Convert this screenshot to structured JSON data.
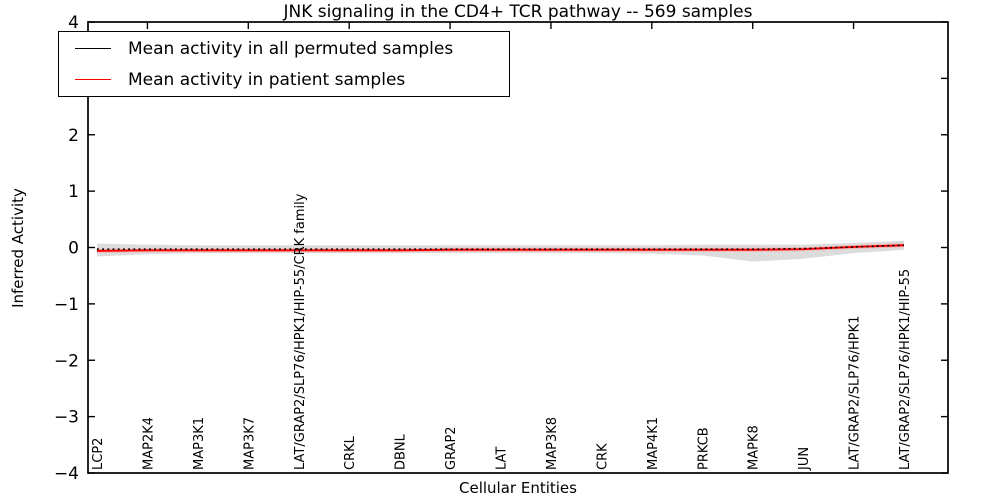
{
  "figure": {
    "title": "JNK signaling in the CD4+ TCR pathway -- 569 samples",
    "xlabel": "Cellular Entities",
    "ylabel": "Inferred Activity"
  },
  "legend": {
    "position": "upper left",
    "items": [
      {
        "label": "Mean activity in all permuted samples",
        "color": "#000000"
      },
      {
        "label": "Mean activity in patient samples",
        "color": "#ff0000"
      }
    ]
  },
  "chart_data": {
    "type": "line",
    "title": "JNK signaling in the CD4+ TCR pathway -- 569 samples",
    "xlabel": "Cellular Entities",
    "ylabel": "Inferred Activity",
    "ylim": [
      -4,
      4
    ],
    "yticks": [
      -4,
      -3,
      -2,
      -1,
      0,
      1,
      2,
      3,
      4
    ],
    "x_top_tick_indices": [
      1,
      3,
      5,
      7,
      9,
      11,
      13,
      15
    ],
    "grid": false,
    "background": "#ffffff",
    "legend_position": "upper left",
    "categories": [
      "LCP2",
      "MAP2K4",
      "MAP3K1",
      "MAP3K7",
      "LAT/GRAP2/SLP76/HPK1/HIP-55/CRK family",
      "CRKL",
      "DBNL",
      "GRAP2",
      "LAT",
      "MAP3K8",
      "CRK",
      "MAP4K1",
      "PRKCB",
      "MAPK8",
      "JUN",
      "LAT/GRAP2/SLP76/HPK1",
      "LAT/GRAP2/SLP76/HPK1/HIP-55"
    ],
    "series": [
      {
        "name": "Mean activity in all permuted samples",
        "color": "#000000",
        "linestyle": "dotted",
        "values": [
          -0.03,
          -0.03,
          -0.03,
          -0.03,
          -0.03,
          -0.03,
          -0.03,
          -0.03,
          -0.03,
          -0.03,
          -0.03,
          -0.03,
          -0.03,
          -0.03,
          -0.02,
          0.01,
          0.04
        ],
        "band_upper": [
          0.07,
          0.05,
          0.04,
          0.04,
          0.04,
          0.04,
          0.04,
          0.04,
          0.04,
          0.04,
          0.04,
          0.04,
          0.05,
          0.05,
          0.05,
          0.08,
          0.12
        ],
        "band_lower": [
          -0.16,
          -0.12,
          -0.1,
          -0.1,
          -0.1,
          -0.1,
          -0.1,
          -0.1,
          -0.1,
          -0.1,
          -0.1,
          -0.11,
          -0.14,
          -0.25,
          -0.2,
          -0.1,
          -0.04
        ],
        "band_color": "#d6d6d6"
      },
      {
        "name": "Mean activity in patient samples",
        "color": "#ff0000",
        "linestyle": "solid",
        "values": [
          -0.06,
          -0.05,
          -0.05,
          -0.05,
          -0.05,
          -0.05,
          -0.05,
          -0.04,
          -0.04,
          -0.04,
          -0.04,
          -0.04,
          -0.04,
          -0.04,
          -0.03,
          0.01,
          0.04
        ],
        "band_halfwidth": 0.035,
        "band_color": "#ff9999"
      }
    ]
  }
}
